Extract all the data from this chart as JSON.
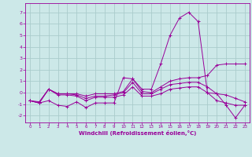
{
  "xlabel": "Windchill (Refroidissement éolien,°C)",
  "background_color": "#cce8e8",
  "grid_color": "#aacccc",
  "line_color": "#990099",
  "x_ticks": [
    0,
    1,
    2,
    3,
    4,
    5,
    6,
    7,
    8,
    9,
    10,
    11,
    12,
    13,
    14,
    15,
    16,
    17,
    18,
    19,
    20,
    21,
    22,
    23
  ],
  "y_ticks": [
    -2,
    -1,
    0,
    1,
    2,
    3,
    4,
    5,
    6,
    7
  ],
  "xlim": [
    -0.5,
    23.5
  ],
  "ylim": [
    -2.6,
    7.8
  ],
  "series": [
    {
      "x": [
        0,
        1,
        2,
        3,
        4,
        5,
        6,
        7,
        8,
        9,
        10,
        11,
        12,
        13,
        14,
        15,
        16,
        17,
        18,
        19,
        20,
        21,
        22,
        23
      ],
      "y": [
        -0.7,
        -0.9,
        -0.7,
        -1.1,
        -1.2,
        -0.8,
        -1.3,
        -0.9,
        -0.9,
        -0.9,
        1.3,
        1.2,
        0.3,
        0.3,
        2.5,
        5.0,
        6.5,
        7.0,
        6.2,
        0.0,
        -0.1,
        -1.1,
        -2.2,
        -1.1
      ]
    },
    {
      "x": [
        0,
        1,
        2,
        3,
        4,
        5,
        6,
        7,
        8,
        9,
        10,
        11,
        12,
        13,
        14,
        15,
        16,
        17,
        18,
        19,
        20,
        21,
        22,
        23
      ],
      "y": [
        -0.7,
        -0.9,
        0.3,
        -0.1,
        -0.1,
        -0.1,
        -0.3,
        -0.1,
        -0.1,
        -0.1,
        0.1,
        1.2,
        0.1,
        0.0,
        0.5,
        1.0,
        1.2,
        1.3,
        1.3,
        1.5,
        2.4,
        2.5,
        2.5,
        2.5
      ]
    },
    {
      "x": [
        0,
        1,
        2,
        3,
        4,
        5,
        6,
        7,
        8,
        9,
        10,
        11,
        12,
        13,
        14,
        15,
        16,
        17,
        18,
        19,
        20,
        21,
        22,
        23
      ],
      "y": [
        -0.7,
        -0.8,
        0.3,
        -0.1,
        -0.1,
        -0.2,
        -0.5,
        -0.3,
        -0.3,
        -0.2,
        0.0,
        0.9,
        -0.1,
        -0.1,
        0.3,
        0.7,
        0.8,
        0.9,
        0.9,
        0.5,
        -0.1,
        -0.2,
        -0.5,
        -0.8
      ]
    },
    {
      "x": [
        0,
        1,
        2,
        3,
        4,
        5,
        6,
        7,
        8,
        9,
        10,
        11,
        12,
        13,
        14,
        15,
        16,
        17,
        18,
        19,
        20,
        21,
        22,
        23
      ],
      "y": [
        -0.7,
        -0.9,
        0.3,
        -0.2,
        -0.2,
        -0.3,
        -0.7,
        -0.4,
        -0.4,
        -0.4,
        -0.2,
        0.5,
        -0.3,
        -0.3,
        -0.1,
        0.3,
        0.4,
        0.5,
        0.5,
        0.0,
        -0.7,
        -0.9,
        -1.1,
        -1.1
      ]
    }
  ]
}
